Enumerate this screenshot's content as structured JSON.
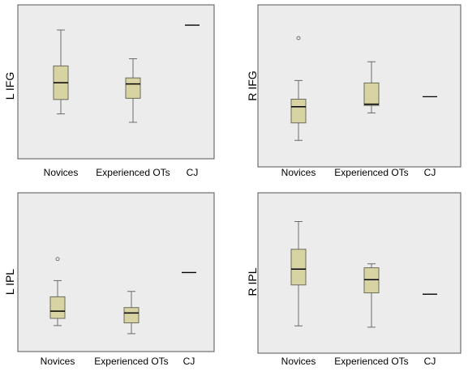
{
  "colors": {
    "panel_bg": "#ececec",
    "box_fill": "#d8d3a3",
    "box_stroke": "#6b6b5a",
    "whisker": "#6b6b6b",
    "median": "#000000",
    "frame": "#555555"
  },
  "chart_data": [
    {
      "type": "boxplot",
      "ylabel": "L IFG",
      "categories": [
        "Novices",
        "Experienced OTs",
        "CJ"
      ],
      "ylim": [
        0,
        100
      ],
      "grid": false,
      "boxes": [
        {
          "min": 30,
          "q1": 42,
          "median": 56,
          "q3": 70,
          "max": 100,
          "outliers": []
        },
        {
          "min": 23,
          "q1": 43,
          "median": 55,
          "q3": 60,
          "max": 76,
          "outliers": []
        },
        {
          "single_value": 104
        }
      ]
    },
    {
      "type": "boxplot",
      "ylabel": "R IFG",
      "categories": [
        "Novices",
        "Experienced OTs",
        "CJ"
      ],
      "ylim": [
        0,
        100
      ],
      "grid": false,
      "boxes": [
        {
          "min": 18,
          "q1": 32,
          "median": 45,
          "q3": 51,
          "max": 66,
          "outliers": [
            100
          ]
        },
        {
          "min": 40,
          "q1": 46,
          "median": 47,
          "q3": 64,
          "max": 81,
          "outliers": []
        },
        {
          "single_value": 53
        }
      ]
    },
    {
      "type": "boxplot",
      "ylabel": "L IPL",
      "categories": [
        "Novices",
        "Experienced OTs",
        "CJ"
      ],
      "ylim": [
        0,
        100
      ],
      "grid": false,
      "boxes": [
        {
          "min": 19,
          "q1": 27,
          "median": 35,
          "q3": 51,
          "max": 69,
          "outliers": [
            93
          ]
        },
        {
          "min": 10,
          "q1": 22,
          "median": 33,
          "q3": 39,
          "max": 57,
          "outliers": []
        },
        {
          "single_value": 78
        }
      ]
    },
    {
      "type": "boxplot",
      "ylabel": "R IPL",
      "categories": [
        "Novices",
        "Experienced OTs",
        "CJ"
      ],
      "ylim": [
        0,
        100
      ],
      "grid": false,
      "boxes": [
        {
          "min": 17,
          "q1": 48,
          "median": 60,
          "q3": 75,
          "max": 96,
          "outliers": []
        },
        {
          "min": 16,
          "q1": 42,
          "median": 52,
          "q3": 61,
          "max": 64,
          "outliers": []
        },
        {
          "single_value": 41
        }
      ]
    }
  ]
}
